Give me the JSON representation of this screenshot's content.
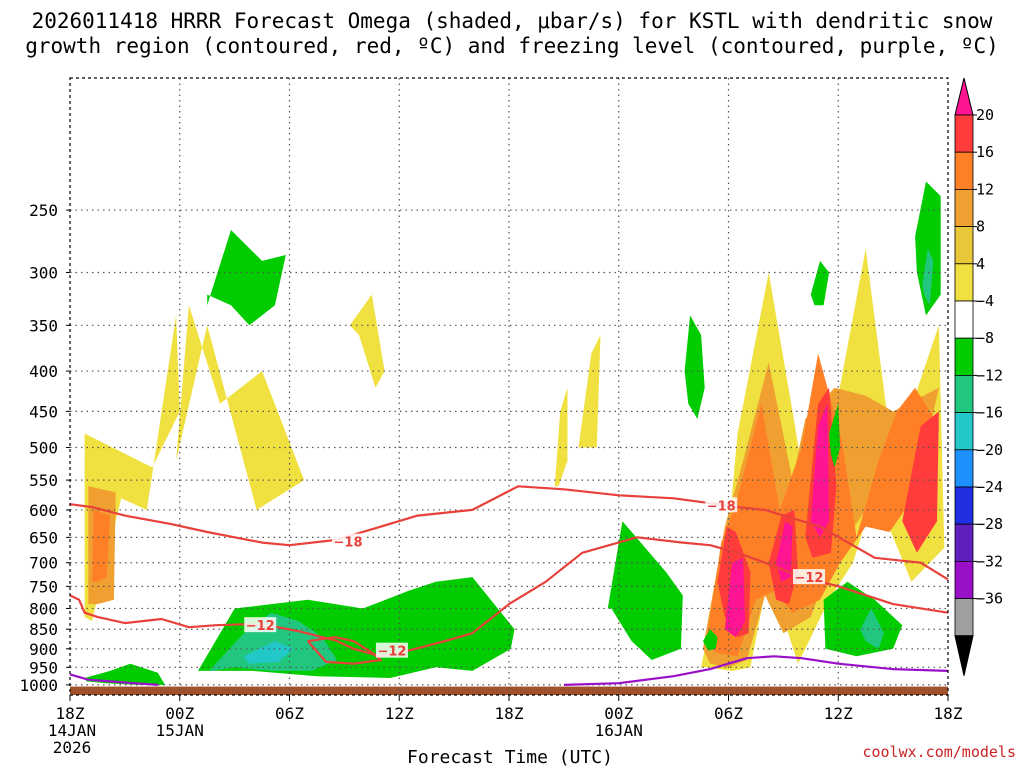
{
  "chart_data": {
    "type": "heatmap",
    "title_lines": [
      "2026011418 HRRR Forecast Omega (shaded, μbar/s) for KSTL with dendritic snow",
      "growth region (contoured, red, ºC) and freezing level (contoured, purple, ºC)"
    ],
    "xlabel": "Forecast Time (UTC)",
    "credit": "coolwx.com/models",
    "x_range_hours": [
      0,
      48
    ],
    "y_range_mb": [
      170,
      1030
    ],
    "x_ticks": [
      {
        "hour": 0,
        "lines": [
          "18Z",
          "14JAN",
          "2026"
        ]
      },
      {
        "hour": 6,
        "lines": [
          "00Z",
          "15JAN"
        ]
      },
      {
        "hour": 12,
        "lines": [
          "06Z"
        ]
      },
      {
        "hour": 18,
        "lines": [
          "12Z"
        ]
      },
      {
        "hour": 24,
        "lines": [
          "18Z"
        ]
      },
      {
        "hour": 30,
        "lines": [
          "00Z",
          "16JAN"
        ]
      },
      {
        "hour": 36,
        "lines": [
          "06Z"
        ]
      },
      {
        "hour": 42,
        "lines": [
          "12Z"
        ]
      },
      {
        "hour": 48,
        "lines": [
          "18Z"
        ]
      }
    ],
    "y_ticks": [
      250,
      300,
      350,
      400,
      450,
      500,
      550,
      600,
      650,
      700,
      750,
      800,
      850,
      900,
      950,
      1000
    ],
    "colorbar": {
      "labels": [
        "20",
        "16",
        "12",
        "8",
        "4",
        "−4",
        "−8",
        "−12",
        "−16",
        "−20",
        "−24",
        "−28",
        "−32",
        "−36"
      ],
      "colors": [
        "#ff1493",
        "#ff3b3b",
        "#ff7f27",
        "#f0a030",
        "#e8c838",
        "#f0e040",
        "#ffffff",
        "#00cc00",
        "#22c77f",
        "#22c8c8",
        "#1e90ff",
        "#2030e0",
        "#6020c0",
        "#9a10c8",
        "#a0a0a0",
        "#000000"
      ]
    },
    "omega_regions": [
      {
        "level": 4,
        "x": [
          0.8,
          0.8,
          4.5,
          6,
          5.8,
          4.2,
          2.8,
          1.2
        ],
        "p": [
          820,
          480,
          530,
          450,
          340,
          600,
          580,
          830
        ]
      },
      {
        "level": 4,
        "x": [
          5.8,
          7.5,
          10.2,
          12.8,
          10.5,
          8.2,
          6.5
        ],
        "p": [
          520,
          350,
          600,
          550,
          400,
          440,
          330
        ]
      },
      {
        "level": 8,
        "x": [
          1,
          1,
          2.5,
          2.4,
          1.5
        ],
        "p": [
          790,
          560,
          570,
          780,
          790
        ]
      },
      {
        "level": 12,
        "x": [
          1.2,
          1.3,
          2.2,
          2,
          1.5
        ],
        "p": [
          740,
          600,
          610,
          730,
          740
        ]
      },
      {
        "level": 4,
        "x": [
          15.3,
          16.5,
          17.2,
          16.7,
          15.8
        ],
        "p": [
          350,
          320,
          400,
          420,
          360
        ]
      },
      {
        "level": 4,
        "x": [
          26.5,
          26.8,
          27.2,
          27.2,
          26.7
        ],
        "p": [
          560,
          450,
          420,
          520,
          560
        ]
      },
      {
        "level": 4,
        "x": [
          27.8,
          28.5,
          29,
          28.8,
          28.1
        ],
        "p": [
          500,
          380,
          360,
          500,
          500
        ]
      },
      {
        "level": 4,
        "x": [
          34.5,
          36,
          36.5,
          38.2,
          39.5,
          40.5,
          42,
          43.5,
          45,
          47.5,
          47.8,
          46,
          44,
          42.8,
          41.5,
          39.8,
          38.2,
          37.2,
          36.2,
          34.8
        ],
        "p": [
          950,
          640,
          480,
          300,
          450,
          620,
          430,
          280,
          520,
          350,
          670,
          740,
          570,
          700,
          780,
          940,
          720,
          950,
          960,
          950
        ]
      },
      {
        "level": 8,
        "x": [
          34.6,
          35.8,
          36.8,
          38.2,
          39.5,
          40.2,
          41.8,
          43.5,
          45,
          47.5,
          46,
          44,
          41.8,
          40.5,
          39,
          38,
          37,
          36,
          35
        ],
        "p": [
          900,
          630,
          520,
          390,
          550,
          460,
          420,
          430,
          450,
          420,
          600,
          580,
          680,
          820,
          860,
          770,
          930,
          950,
          940
        ]
      },
      {
        "level": 12,
        "x": [
          34.8,
          35.6,
          36.4,
          37.8,
          38.8,
          40,
          40.9,
          42.2,
          43,
          44.2,
          45.2,
          46.2,
          47.5,
          47.2,
          46.1,
          44.8,
          43.5,
          42.1,
          41,
          39.5,
          38.5,
          37.5,
          36.5,
          35.3
        ],
        "p": [
          880,
          660,
          590,
          440,
          600,
          500,
          380,
          490,
          650,
          520,
          450,
          420,
          470,
          630,
          580,
          640,
          630,
          700,
          780,
          810,
          760,
          780,
          920,
          910
        ]
      },
      {
        "level": 16,
        "x": [
          35.4,
          35.9,
          36.4,
          37.2,
          37.1,
          36.5,
          35.8
        ],
        "p": [
          740,
          630,
          640,
          720,
          860,
          870,
          820
        ]
      },
      {
        "level": 16,
        "x": [
          38.2,
          38.9,
          39.6,
          39.8,
          39.3,
          38.6
        ],
        "p": [
          700,
          610,
          600,
          720,
          790,
          780
        ]
      },
      {
        "level": 16,
        "x": [
          40.2,
          40.9,
          41.5,
          41.9,
          41.6,
          40.6
        ],
        "p": [
          650,
          440,
          420,
          560,
          680,
          690
        ]
      },
      {
        "level": 16,
        "x": [
          45.5,
          46.5,
          47.5,
          47.4,
          46.3
        ],
        "p": [
          620,
          470,
          450,
          620,
          680
        ]
      },
      {
        "level": 20,
        "x": [
          35.8,
          36.2,
          36.8,
          36.9,
          36.4
        ],
        "p": [
          850,
          700,
          690,
          830,
          870
        ]
      },
      {
        "level": 20,
        "x": [
          40.5,
          40.9,
          41.4,
          41.5,
          41
        ],
        "p": [
          620,
          470,
          440,
          620,
          650
        ]
      },
      {
        "level": 20,
        "x": [
          38.6,
          39.1,
          39.5,
          39.4,
          38.9
        ],
        "p": [
          700,
          620,
          630,
          730,
          740
        ]
      },
      {
        "level": -4,
        "x": [
          7.5,
          8.8,
          10.5,
          11.8,
          11.2,
          9.8,
          8.8,
          7.5
        ],
        "p": [
          330,
          265,
          290,
          285,
          330,
          350,
          330,
          320
        ]
      },
      {
        "level": -4,
        "x": [
          7,
          9,
          13,
          16,
          18.5,
          20,
          22,
          24.3,
          24.1,
          22,
          20,
          17.5,
          13.5,
          10,
          7.4
        ],
        "p": [
          960,
          800,
          780,
          800,
          760,
          740,
          730,
          850,
          900,
          960,
          950,
          980,
          975,
          960,
          960
        ]
      },
      {
        "level": -8,
        "x": [
          7.6,
          9.5,
          11,
          12.5,
          13.8,
          14.6,
          13.2,
          11,
          9,
          7.8
        ],
        "p": [
          960,
          860,
          810,
          830,
          870,
          930,
          960,
          960,
          950,
          960
        ]
      },
      {
        "level": -12,
        "x": [
          9.5,
          11.2,
          12.2,
          11.4,
          9.8
        ],
        "p": [
          920,
          880,
          900,
          935,
          940
        ]
      },
      {
        "level": -4,
        "x": [
          0.8,
          2.2,
          3.3,
          4.8,
          5.2,
          3.6,
          2,
          0.9
        ],
        "p": [
          980,
          960,
          940,
          965,
          1000,
          1000,
          995,
          990
        ]
      },
      {
        "level": -4,
        "x": [
          29.4,
          30.2,
          32.6,
          33.5,
          33.4,
          31.8,
          30.7,
          29.6
        ],
        "p": [
          800,
          620,
          720,
          770,
          900,
          930,
          880,
          800
        ]
      },
      {
        "level": -4,
        "x": [
          33.6,
          33.9,
          34.5,
          34.7,
          34.3,
          33.8
        ],
        "p": [
          400,
          340,
          360,
          420,
          460,
          440
        ]
      },
      {
        "level": -4,
        "x": [
          34.6,
          35,
          35.4,
          35.3,
          34.9
        ],
        "p": [
          880,
          850,
          870,
          900,
          905
        ]
      },
      {
        "level": -4,
        "x": [
          40.5,
          41,
          41.5,
          41.2,
          40.7
        ],
        "p": [
          320,
          290,
          300,
          330,
          330
        ]
      },
      {
        "level": -4,
        "x": [
          41.5,
          42,
          42.1,
          41.8,
          41.6
        ],
        "p": [
          480,
          440,
          500,
          530,
          510
        ]
      },
      {
        "level": -4,
        "x": [
          41.2,
          42.5,
          44,
          45.5,
          45,
          43,
          41.3
        ],
        "p": [
          780,
          740,
          780,
          840,
          900,
          920,
          900
        ]
      },
      {
        "level": -8,
        "x": [
          43.2,
          43.8,
          44.5,
          44.2,
          43.5
        ],
        "p": [
          850,
          800,
          860,
          900,
          880
        ]
      },
      {
        "level": -4,
        "x": [
          46.2,
          46.8,
          47.6,
          47.6,
          46.8,
          46.3
        ],
        "p": [
          270,
          230,
          240,
          320,
          340,
          300
        ]
      },
      {
        "level": -8,
        "x": [
          46.6,
          46.9,
          47.2,
          47,
          46.7
        ],
        "p": [
          310,
          280,
          290,
          330,
          320
        ]
      }
    ],
    "dgz_contours": [
      {
        "label": "−18",
        "x": [
          0,
          1.2,
          3,
          5.5,
          7.5,
          9,
          10.5,
          12,
          14.5,
          16.5,
          19,
          22,
          24.5,
          27,
          30,
          33,
          35.4,
          36.5,
          38,
          41,
          44,
          46.5,
          48
        ],
        "p": [
          590,
          595,
          610,
          625,
          640,
          650,
          660,
          665,
          655,
          635,
          610,
          600,
          560,
          565,
          575,
          580,
          590,
          595,
          600,
          630,
          690,
          700,
          735
        ]
      },
      {
        "label": "−12",
        "x": [
          0,
          0.5,
          0.8,
          1.5,
          3,
          5,
          6.5,
          8,
          9.5,
          11,
          12.5,
          14.5,
          15.5,
          17,
          18.5,
          20.5,
          22,
          24,
          26,
          28,
          31,
          33.5,
          35,
          36.5,
          38,
          40,
          42,
          45,
          48
        ],
        "p": [
          770,
          780,
          810,
          820,
          835,
          825,
          845,
          840,
          838,
          842,
          855,
          878,
          900,
          920,
          905,
          880,
          860,
          790,
          740,
          680,
          650,
          660,
          665,
          680,
          700,
          730,
          750,
          790,
          810
        ]
      },
      {
        "label": "−12",
        "x": [
          13,
          14.5,
          15.5,
          16.5,
          17,
          15.5,
          14,
          13
        ],
        "p": [
          880,
          870,
          880,
          910,
          930,
          940,
          935,
          880
        ]
      }
    ],
    "freezing_contours": [
      {
        "x": [
          0,
          1,
          2.2,
          3.5,
          4.8
        ],
        "p": [
          970,
          985,
          990,
          995,
          1000
        ]
      },
      {
        "x": [
          27,
          30,
          33,
          35,
          37,
          38.5,
          40,
          42,
          45,
          48
        ],
        "p": [
          1000,
          995,
          975,
          955,
          925,
          920,
          925,
          940,
          955,
          960
        ]
      }
    ]
  }
}
